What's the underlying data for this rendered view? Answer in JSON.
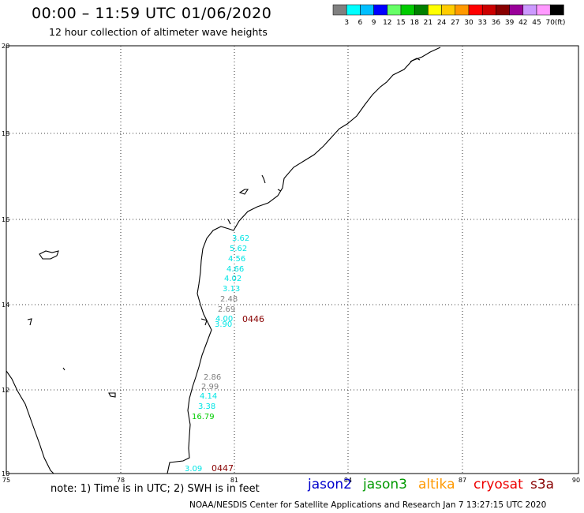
{
  "header": {
    "title": "00:00 – 11:59 UTC 01/06/2020",
    "subtitle": "12 hour collection of altimeter wave heights"
  },
  "colorbar": {
    "labels": [
      "3",
      "6",
      "9",
      "12",
      "15",
      "18",
      "21",
      "24",
      "27",
      "30",
      "33",
      "36",
      "39",
      "42",
      "45",
      "70"
    ],
    "unit": "(ft)",
    "colors": [
      "#808080",
      "#00ffff",
      "#00bfff",
      "#0000ff",
      "#66ff66",
      "#00cc00",
      "#008000",
      "#ffff00",
      "#ffcc00",
      "#ff9900",
      "#ff0000",
      "#cc0000",
      "#880000",
      "#990099",
      "#cc99ff",
      "#ff99ff",
      "#000000"
    ]
  },
  "axes": {
    "lon_labels": [
      "75",
      "78",
      "81",
      "84",
      "87",
      "90"
    ],
    "lat_labels": [
      "20",
      "18",
      "16",
      "14",
      "12",
      "10"
    ]
  },
  "observations": [
    {
      "value": "3.62",
      "color": "#00e5e5"
    },
    {
      "value": "5.62",
      "color": "#00e5e5"
    },
    {
      "value": "4.56",
      "color": "#00e5e5"
    },
    {
      "value": "4.66",
      "color": "#00e5e5"
    },
    {
      "value": "4.02",
      "color": "#00e5e5"
    },
    {
      "value": "3.13",
      "color": "#00e5e5"
    },
    {
      "value": "2.48",
      "color": "#808080"
    },
    {
      "value": "2.69",
      "color": "#808080"
    },
    {
      "value": "4.00",
      "color": "#00e5e5"
    },
    {
      "value": "3.90",
      "color": "#00e5e5"
    },
    {
      "value": "2.86",
      "color": "#808080"
    },
    {
      "value": "2.99",
      "color": "#808080"
    },
    {
      "value": "4.14",
      "color": "#00e5e5"
    },
    {
      "value": "3.38",
      "color": "#00e5e5"
    },
    {
      "value": "16.79",
      "color": "#00cc00"
    },
    {
      "value": "3.09",
      "color": "#00e5e5"
    }
  ],
  "pass_times": [
    {
      "value": "0446",
      "color": "#880000"
    },
    {
      "value": "0447",
      "color": "#880000"
    }
  ],
  "footer": {
    "note": "note: 1) Time is in UTC; 2) SWH is in feet",
    "credit": "NOAA/NESDIS Center for Satellite Applications and Research    Jan  7 13:27:15 UTC 2020"
  },
  "satellites": [
    {
      "name": "jason2",
      "color": "#0000cc"
    },
    {
      "name": "jason3",
      "color": "#009900"
    },
    {
      "name": "altika",
      "color": "#ff9900"
    },
    {
      "name": "cryosat",
      "color": "#ee0000"
    },
    {
      "name": "s3a",
      "color": "#880000"
    }
  ]
}
